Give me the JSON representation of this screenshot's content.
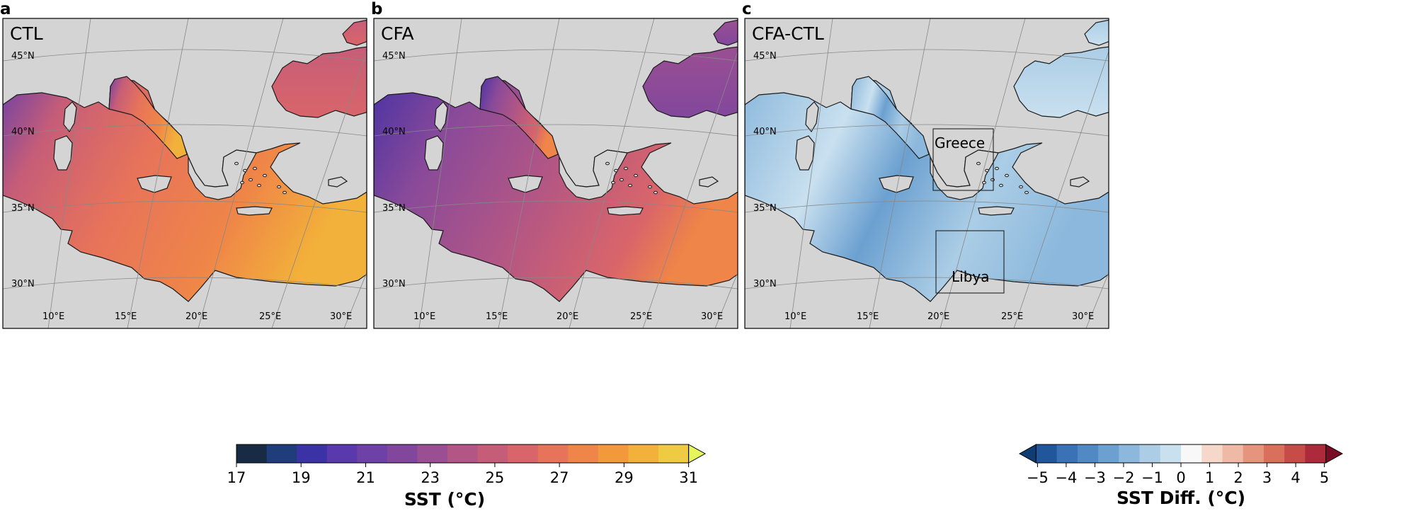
{
  "panels": [
    {
      "letter": "a",
      "title": "CTL",
      "type": "sst"
    },
    {
      "letter": "b",
      "title": "CFA",
      "type": "sst"
    },
    {
      "letter": "c",
      "title": "CFA-CTL",
      "type": "diff",
      "regions": [
        "Greece",
        "Libya"
      ]
    }
  ],
  "map": {
    "lat_labels": [
      "45°N",
      "40°N",
      "35°N",
      "30°N"
    ],
    "lon_labels": [
      "10°E",
      "15°E",
      "20°E",
      "25°E",
      "30°E"
    ]
  },
  "colorbars": {
    "sst": {
      "label": "SST (°C)",
      "ticks": [
        "17",
        "19",
        "21",
        "23",
        "25",
        "27",
        "29",
        "31"
      ],
      "colors": [
        "#172b44",
        "#1f3d7a",
        "#3a32a5",
        "#5a39ad",
        "#6e41a6",
        "#82479c",
        "#9a4f92",
        "#b25685",
        "#c65d78",
        "#d9656a",
        "#e7735a",
        "#ef8548",
        "#f29a3b",
        "#f2b13a",
        "#eecb43",
        "#e6f55c"
      ]
    },
    "diff": {
      "label": "SST Diff. (°C)",
      "ticks": [
        "−5",
        "−4",
        "−3",
        "−2",
        "−1",
        "0",
        "1",
        "2",
        "3",
        "4",
        "5"
      ],
      "colors": [
        "#0e3d73",
        "#22569a",
        "#3a72b5",
        "#5189c4",
        "#6ba0d0",
        "#8bb8dc",
        "#abcde6",
        "#c9e0ef",
        "#f8f8f8",
        "#f6d8cb",
        "#efbaa5",
        "#e5957d",
        "#d8705c",
        "#c74b47",
        "#ad2a3b",
        "#7a0c25"
      ]
    }
  },
  "colors": {
    "land": "#d4d4d4",
    "coast": "#1a1a1a",
    "grid": "#888888"
  }
}
